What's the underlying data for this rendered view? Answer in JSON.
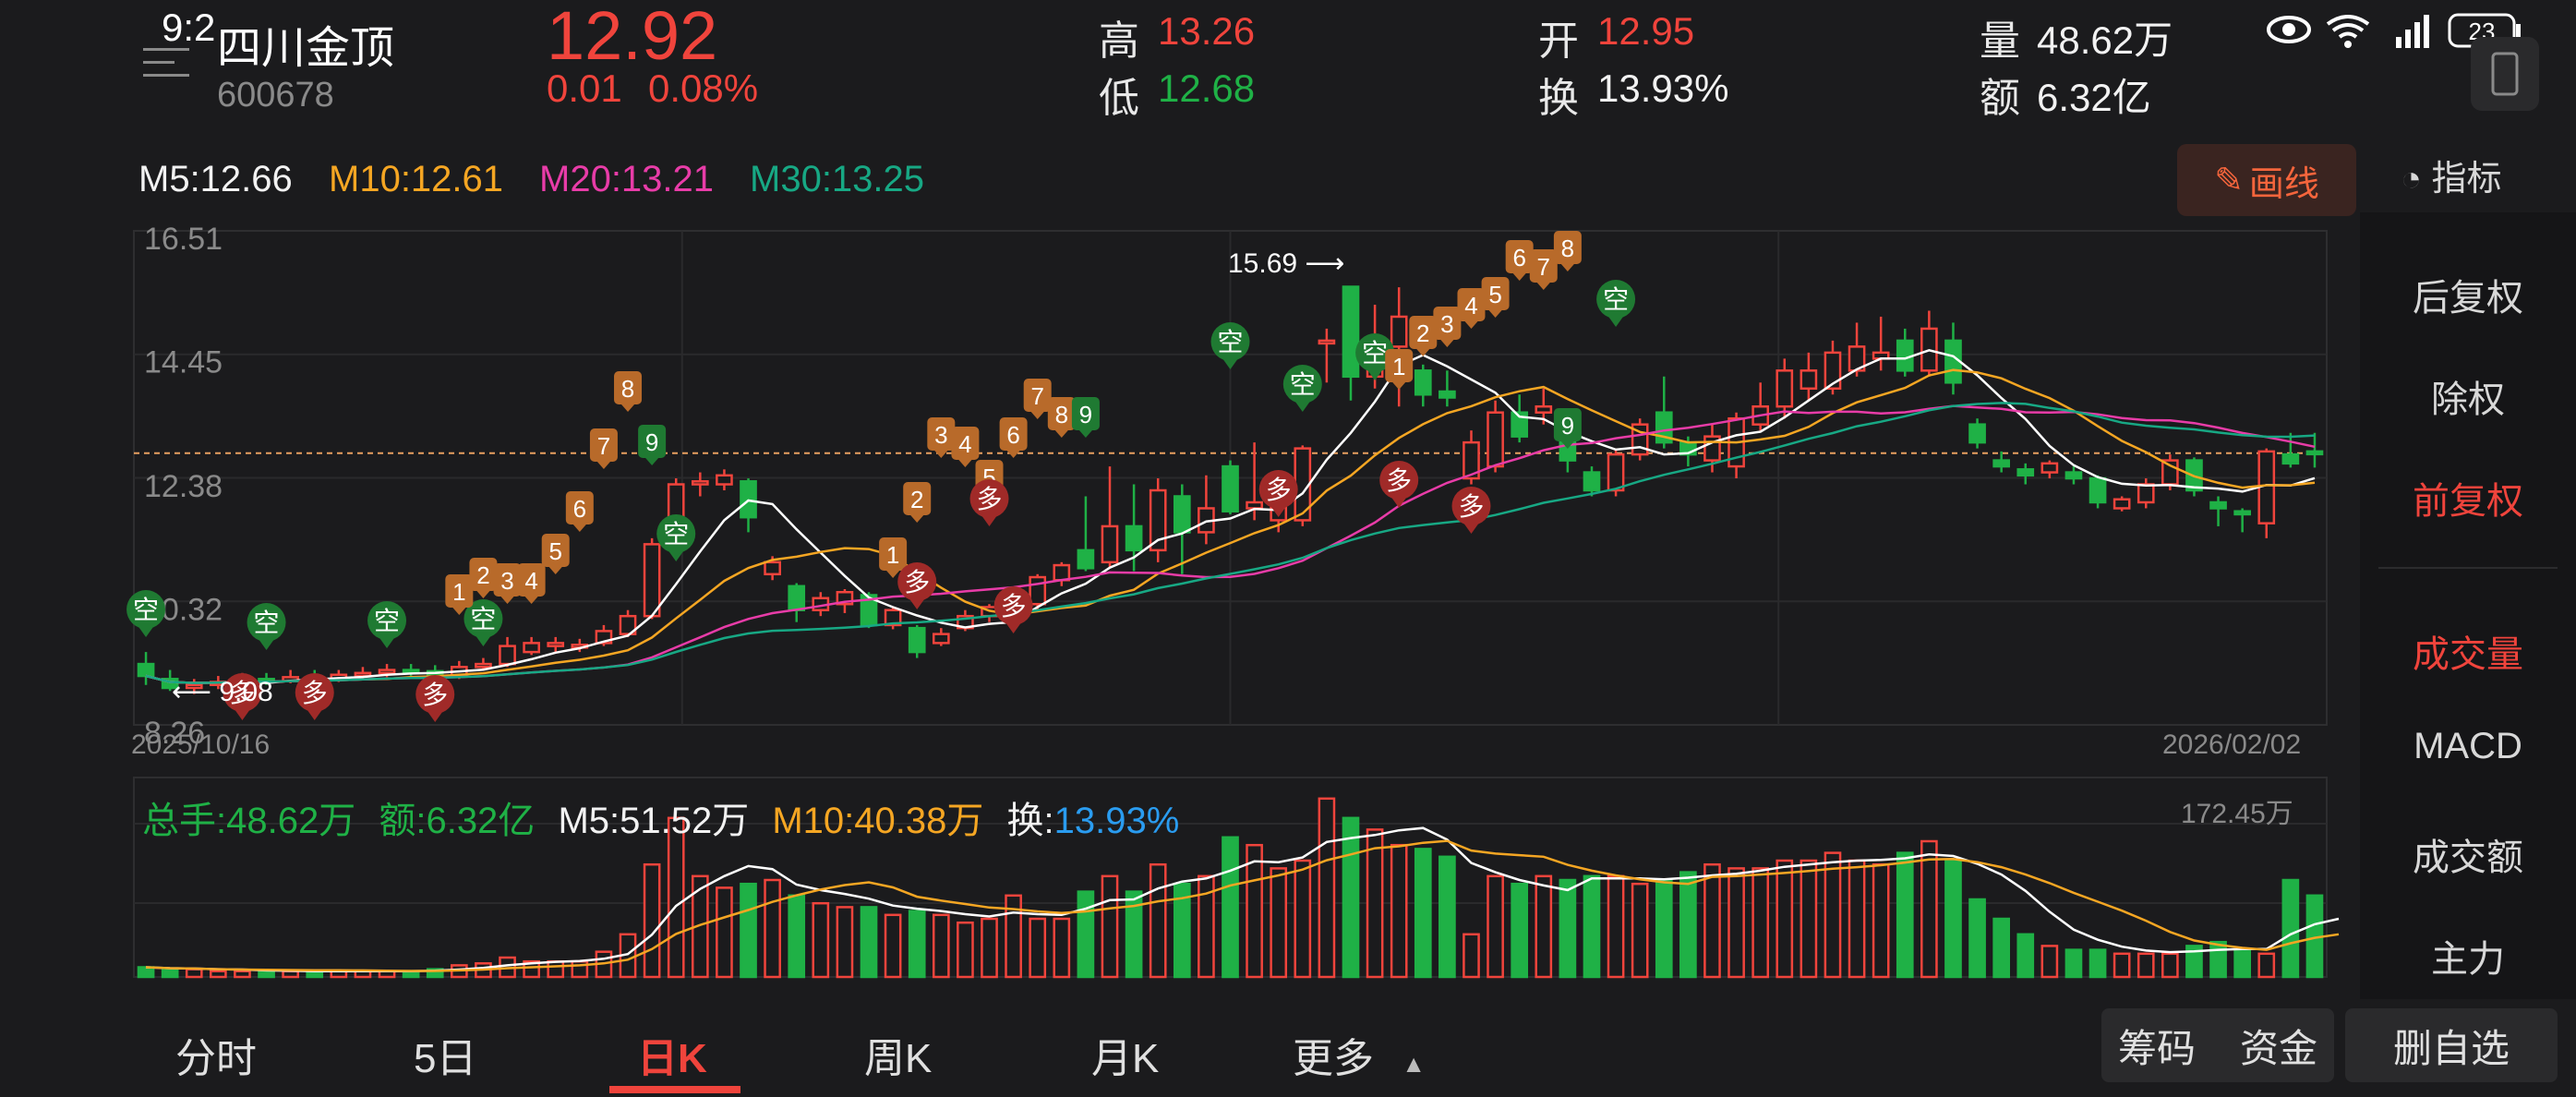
{
  "status_bar": {
    "time": "9:2",
    "battery": "23"
  },
  "stock": {
    "name": "四川金顶",
    "code": "600678",
    "price": "12.92",
    "change": "0.01",
    "change_pct": "0.08%"
  },
  "quote": {
    "high_label": "高",
    "high": "13.26",
    "low_label": "低",
    "low": "12.68",
    "open_label": "开",
    "open": "12.95",
    "turnover_label": "换",
    "turnover": "13.93%",
    "volume_label": "量",
    "volume": "48.62万",
    "amount_label": "额",
    "amount": "6.32亿"
  },
  "ma": {
    "m5": "M5:12.66",
    "m10": "M10:12.61",
    "m20": "M20:13.21",
    "m30": "M30:13.25"
  },
  "draw_button": "画线",
  "indicator_tab": "指标",
  "right_menu": [
    "后复权",
    "除权",
    "前复权",
    "成交量",
    "MACD",
    "成交额",
    "主力"
  ],
  "right_menu_active": [
    "前复权",
    "成交量"
  ],
  "dates": {
    "start": "2025/10/16",
    "end": "2026/02/02"
  },
  "chart_axis": {
    "ticks": [
      "16.51",
      "14.45",
      "12.38",
      "10.32",
      "8.26"
    ]
  },
  "annotations": {
    "high": "15.69",
    "low": "9.08"
  },
  "volume_legend": {
    "total": "总手:48.62万",
    "amount": "额:6.32亿",
    "m5": "M5:51.52万",
    "m10": "M10:40.38万",
    "turnover_label": "换:",
    "turnover": "13.93%",
    "max": "172.45万"
  },
  "tabs": [
    "分时",
    "5日",
    "日K",
    "周K",
    "月K",
    "更多"
  ],
  "tabs_active": "日K",
  "bottom_buttons": {
    "chips": "筹码",
    "funds": "资金",
    "remove": "删自选"
  },
  "colors": {
    "up": "#f0443c",
    "down": "#1fb146",
    "ma5": "#ffffff",
    "ma10": "#f5a623",
    "ma20": "#e83ca8",
    "ma30": "#17a884"
  },
  "signals": {
    "short": "空",
    "long": "多",
    "up_counts": [
      "1",
      "2",
      "3",
      "4",
      "5",
      "6",
      "7",
      "8",
      "9"
    ]
  },
  "chart_data": {
    "type": "candlestick",
    "x_range": [
      "2025/10/16",
      "2026/02/02"
    ],
    "ylim": [
      8.26,
      16.51
    ],
    "y_ticks": [
      16.51,
      14.45,
      12.38,
      10.32,
      8.26
    ],
    "series": [
      {
        "open": 9.4,
        "close": 9.2,
        "high": 9.6,
        "low": 9.05
      },
      {
        "open": 9.15,
        "close": 9.0,
        "high": 9.3,
        "low": 8.95
      },
      {
        "open": 9.0,
        "close": 9.05,
        "high": 9.15,
        "low": 8.9
      },
      {
        "open": 9.05,
        "close": 9.1,
        "high": 9.2,
        "low": 8.98
      },
      {
        "open": 9.1,
        "close": 9.15,
        "high": 9.25,
        "low": 9.05
      },
      {
        "open": 9.15,
        "close": 9.12,
        "high": 9.25,
        "low": 9.05
      },
      {
        "open": 9.12,
        "close": 9.18,
        "high": 9.3,
        "low": 9.08
      },
      {
        "open": 9.18,
        "close": 9.15,
        "high": 9.3,
        "low": 9.08
      },
      {
        "open": 9.15,
        "close": 9.22,
        "high": 9.3,
        "low": 9.1
      },
      {
        "open": 9.22,
        "close": 9.25,
        "high": 9.35,
        "low": 9.15
      },
      {
        "open": 9.25,
        "close": 9.3,
        "high": 9.4,
        "low": 9.18
      },
      {
        "open": 9.3,
        "close": 9.28,
        "high": 9.4,
        "low": 9.2
      },
      {
        "open": 9.28,
        "close": 9.2,
        "high": 9.38,
        "low": 9.1
      },
      {
        "open": 9.2,
        "close": 9.35,
        "high": 9.45,
        "low": 9.15
      },
      {
        "open": 9.35,
        "close": 9.4,
        "high": 9.5,
        "low": 9.3
      },
      {
        "open": 9.4,
        "close": 9.7,
        "high": 9.85,
        "low": 9.35
      },
      {
        "open": 9.6,
        "close": 9.75,
        "high": 9.85,
        "low": 9.55
      },
      {
        "open": 9.7,
        "close": 9.75,
        "high": 9.85,
        "low": 9.6
      },
      {
        "open": 9.7,
        "close": 9.72,
        "high": 9.82,
        "low": 9.6
      },
      {
        "open": 9.75,
        "close": 9.95,
        "high": 10.05,
        "low": 9.7
      },
      {
        "open": 9.9,
        "close": 10.2,
        "high": 10.3,
        "low": 9.85
      },
      {
        "open": 10.2,
        "close": 11.4,
        "high": 11.5,
        "low": 10.15
      },
      {
        "open": 11.4,
        "close": 12.4,
        "high": 12.5,
        "low": 11.3
      },
      {
        "open": 12.4,
        "close": 12.45,
        "high": 12.6,
        "low": 12.2
      },
      {
        "open": 12.4,
        "close": 12.55,
        "high": 12.65,
        "low": 12.3
      },
      {
        "open": 12.45,
        "close": 11.85,
        "high": 12.5,
        "low": 11.6
      },
      {
        "open": 10.9,
        "close": 11.1,
        "high": 11.2,
        "low": 10.8
      },
      {
        "open": 10.7,
        "close": 10.3,
        "high": 10.75,
        "low": 10.1
      },
      {
        "open": 10.3,
        "close": 10.5,
        "high": 10.6,
        "low": 10.2
      },
      {
        "open": 10.4,
        "close": 10.6,
        "high": 10.65,
        "low": 10.25
      },
      {
        "open": 10.55,
        "close": 10.05,
        "high": 10.6,
        "low": 10.0
      },
      {
        "open": 10.05,
        "close": 10.3,
        "high": 10.35,
        "low": 9.98
      },
      {
        "open": 10.0,
        "close": 9.6,
        "high": 10.05,
        "low": 9.5
      },
      {
        "open": 9.75,
        "close": 9.9,
        "high": 10.0,
        "low": 9.7
      },
      {
        "open": 10.0,
        "close": 10.2,
        "high": 10.3,
        "low": 9.95
      },
      {
        "open": 10.2,
        "close": 10.35,
        "high": 10.4,
        "low": 10.1
      },
      {
        "open": 10.35,
        "close": 10.45,
        "high": 10.55,
        "low": 10.25
      },
      {
        "open": 10.4,
        "close": 10.85,
        "high": 10.9,
        "low": 10.3
      },
      {
        "open": 10.8,
        "close": 11.05,
        "high": 11.1,
        "low": 10.7
      },
      {
        "open": 11.3,
        "close": 11.0,
        "high": 12.2,
        "low": 10.95
      },
      {
        "open": 11.1,
        "close": 11.7,
        "high": 12.7,
        "low": 11.0
      },
      {
        "open": 11.7,
        "close": 11.3,
        "high": 12.4,
        "low": 10.95
      },
      {
        "open": 11.3,
        "close": 12.3,
        "high": 12.5,
        "low": 11.1
      },
      {
        "open": 12.2,
        "close": 11.6,
        "high": 12.4,
        "low": 10.9
      },
      {
        "open": 11.6,
        "close": 12.0,
        "high": 12.55,
        "low": 11.4
      },
      {
        "open": 12.7,
        "close": 11.95,
        "high": 12.8,
        "low": 11.9
      },
      {
        "open": 12.0,
        "close": 12.1,
        "high": 13.1,
        "low": 11.8
      },
      {
        "open": 11.8,
        "close": 12.2,
        "high": 12.3,
        "low": 11.6
      },
      {
        "open": 11.8,
        "close": 13.0,
        "high": 13.05,
        "low": 11.7
      },
      {
        "open": 14.8,
        "close": 14.8,
        "high": 15.0,
        "low": 14.1
      },
      {
        "open": 15.7,
        "close": 14.2,
        "high": 15.7,
        "low": 13.8
      },
      {
        "open": 14.2,
        "close": 14.7,
        "high": 15.4,
        "low": 14.0
      },
      {
        "open": 14.7,
        "close": 15.2,
        "high": 15.69,
        "low": 13.7
      },
      {
        "open": 14.3,
        "close": 13.9,
        "high": 14.4,
        "low": 13.7
      },
      {
        "open": 13.95,
        "close": 13.85,
        "high": 14.3,
        "low": 13.7
      },
      {
        "open": 12.5,
        "close": 13.1,
        "high": 13.3,
        "low": 12.4
      },
      {
        "open": 12.7,
        "close": 13.6,
        "high": 13.8,
        "low": 12.6
      },
      {
        "open": 13.6,
        "close": 13.2,
        "high": 13.9,
        "low": 13.1
      },
      {
        "open": 13.6,
        "close": 13.7,
        "high": 14.0,
        "low": 13.4
      },
      {
        "open": 13.3,
        "close": 12.8,
        "high": 13.4,
        "low": 12.6
      },
      {
        "open": 12.6,
        "close": 12.3,
        "high": 12.7,
        "low": 12.2
      },
      {
        "open": 12.3,
        "close": 12.9,
        "high": 13.0,
        "low": 12.2
      },
      {
        "open": 12.9,
        "close": 13.4,
        "high": 13.5,
        "low": 12.8
      },
      {
        "open": 13.6,
        "close": 13.1,
        "high": 14.2,
        "low": 13.0
      },
      {
        "open": 13.1,
        "close": 12.9,
        "high": 13.2,
        "low": 12.7
      },
      {
        "open": 12.8,
        "close": 13.2,
        "high": 13.4,
        "low": 12.6
      },
      {
        "open": 12.7,
        "close": 13.5,
        "high": 13.6,
        "low": 12.5
      },
      {
        "open": 13.4,
        "close": 13.7,
        "high": 14.1,
        "low": 13.3
      },
      {
        "open": 13.7,
        "close": 14.3,
        "high": 14.5,
        "low": 13.5
      },
      {
        "open": 14.0,
        "close": 14.3,
        "high": 14.6,
        "low": 13.8
      },
      {
        "open": 14.0,
        "close": 14.6,
        "high": 14.8,
        "low": 13.9
      },
      {
        "open": 14.3,
        "close": 14.7,
        "high": 15.1,
        "low": 14.2
      },
      {
        "open": 14.5,
        "close": 14.6,
        "high": 15.2,
        "low": 14.3
      },
      {
        "open": 14.8,
        "close": 14.3,
        "high": 15.0,
        "low": 14.2
      },
      {
        "open": 14.3,
        "close": 15.0,
        "high": 15.3,
        "low": 14.2
      },
      {
        "open": 14.8,
        "close": 14.1,
        "high": 15.1,
        "low": 13.9
      },
      {
        "open": 13.4,
        "close": 13.1,
        "high": 13.5,
        "low": 13.0
      },
      {
        "open": 12.8,
        "close": 12.7,
        "high": 12.95,
        "low": 12.6
      },
      {
        "open": 12.65,
        "close": 12.55,
        "high": 12.75,
        "low": 12.4
      },
      {
        "open": 12.6,
        "close": 12.75,
        "high": 12.8,
        "low": 12.5
      },
      {
        "open": 12.6,
        "close": 12.5,
        "high": 12.7,
        "low": 12.4
      },
      {
        "open": 12.5,
        "close": 12.1,
        "high": 12.55,
        "low": 12.0
      },
      {
        "open": 12.0,
        "close": 12.15,
        "high": 12.2,
        "low": 11.95
      },
      {
        "open": 12.1,
        "close": 12.4,
        "high": 12.5,
        "low": 12.0
      },
      {
        "open": 12.4,
        "close": 12.8,
        "high": 12.9,
        "low": 12.3
      },
      {
        "open": 12.8,
        "close": 12.3,
        "high": 12.85,
        "low": 12.2
      },
      {
        "open": 12.1,
        "close": 12.0,
        "high": 12.2,
        "low": 11.7
      },
      {
        "open": 11.95,
        "close": 11.9,
        "high": 12.0,
        "low": 11.6
      },
      {
        "open": 11.75,
        "close": 12.95,
        "high": 13.0,
        "low": 11.5
      },
      {
        "open": 12.9,
        "close": 12.75,
        "high": 13.26,
        "low": 12.68
      },
      {
        "open": 12.95,
        "close": 12.92,
        "high": 13.26,
        "low": 12.68
      }
    ],
    "volume_max": "172.45万"
  }
}
